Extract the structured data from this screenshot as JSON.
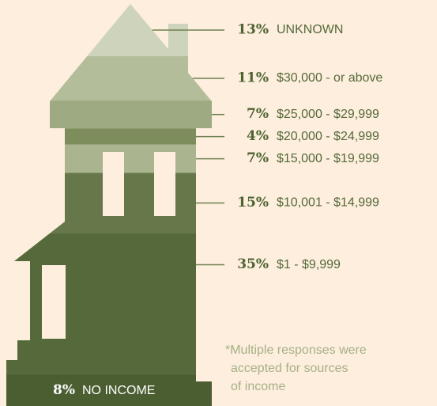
{
  "chart_data": {
    "type": "house",
    "categories": [
      "UNKNOWN",
      "$30,000 - or above",
      "$25,000 - $29,999",
      "$20,000 - $24,999",
      "$15,000 - $19,999",
      "$10,001 - $14,999",
      "$1 - $9,999",
      "NO INCOME"
    ],
    "values": [
      13,
      11,
      7,
      4,
      7,
      15,
      35,
      8
    ],
    "value_labels": [
      "13%",
      "11%",
      "7%",
      "4%",
      "7%",
      "15%",
      "35%",
      "8%"
    ],
    "colors": [
      "#cdd4bb",
      "#b3bd9a",
      "#9eab82",
      "#7d8d5c",
      "#aab48e",
      "#66784a",
      "#56693b",
      "#4b5e31"
    ],
    "note": [
      "*Multiple responses were",
      "accepted for sources",
      "of income"
    ]
  }
}
